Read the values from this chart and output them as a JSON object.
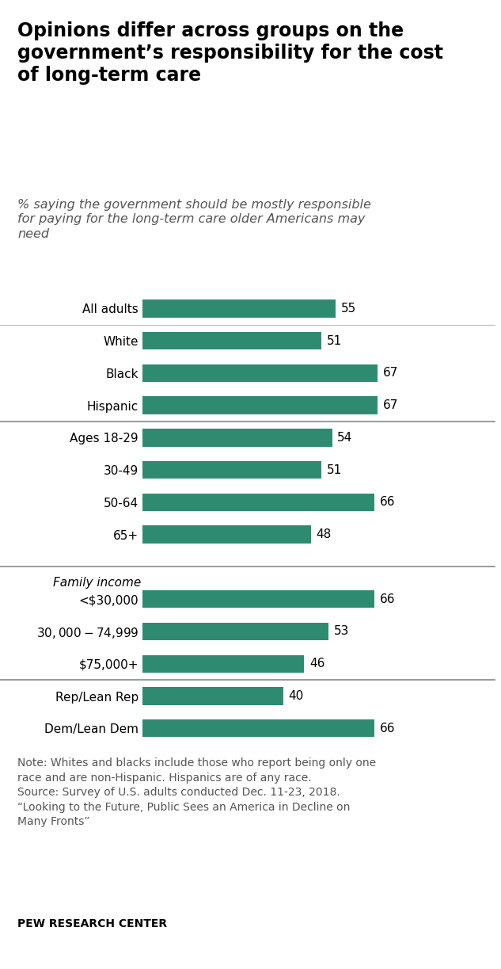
{
  "title": "Opinions differ across groups on the\ngovernment’s responsibility for the cost\nof long-term care",
  "subtitle": "% saying the government should be mostly responsible\nfor paying for the long-term care older Americans may\nneed",
  "categories": [
    "All adults",
    "White",
    "Black",
    "Hispanic",
    "Ages 18-29",
    "30-49",
    "50-64",
    "65+",
    "<$30,000",
    "$30,000-$74,999",
    "$75,000+",
    "Rep/Lean Rep",
    "Dem/Lean Dem"
  ],
  "values": [
    55,
    51,
    67,
    67,
    54,
    51,
    66,
    48,
    66,
    53,
    46,
    40,
    66
  ],
  "bar_color": "#2e8b72",
  "note_line1": "Note: Whites and blacks include those who report being only one",
  "note_line2": "race and are non-Hispanic. Hispanics are of any race.",
  "note_line3": "Source: Survey of U.S. adults conducted Dec. 11-23, 2018.",
  "note_line4": "“Looking to the Future, Public Sees an America in Decline on",
  "note_line5": "Many Fronts”",
  "footer": "PEW RESEARCH CENTER",
  "xlim": [
    0,
    85
  ],
  "background_color": "#ffffff",
  "bar_height": 0.55,
  "label_fontsize": 11,
  "title_fontsize": 17,
  "subtitle_fontsize": 11.5,
  "note_fontsize": 10,
  "footer_fontsize": 10,
  "family_income_label": "Family income"
}
